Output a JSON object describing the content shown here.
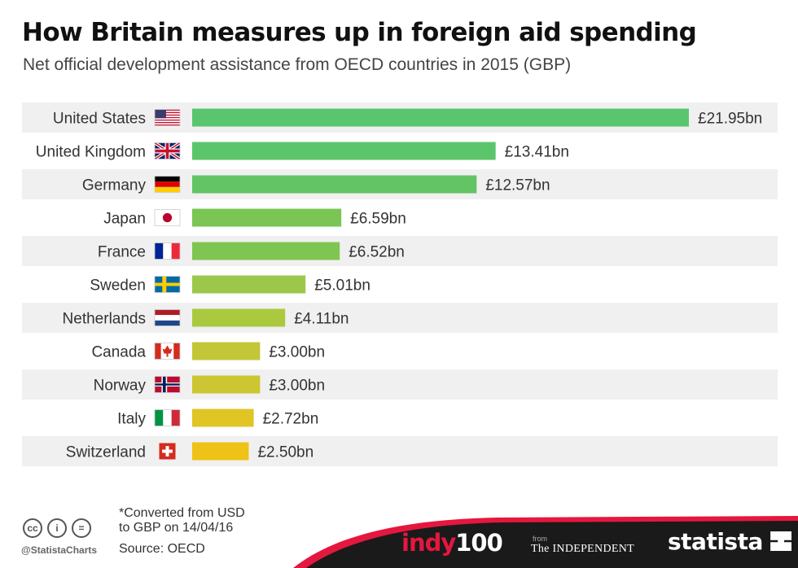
{
  "header": {
    "title": "How Britain measures up in foreign aid spending",
    "subtitle": "Net official development assistance from OECD countries in 2015 (GBP)"
  },
  "chart_data": {
    "type": "bar",
    "orientation": "horizontal",
    "title": "How Britain measures up in foreign aid spending",
    "subtitle": "Net official development assistance from OECD countries in 2015 (GBP)",
    "xlabel": "",
    "ylabel": "",
    "unit": "£ billion",
    "xlim": [
      0,
      22
    ],
    "grid": false,
    "legend": "none",
    "categories": [
      "United States",
      "United Kingdom",
      "Germany",
      "Japan",
      "France",
      "Sweden",
      "Netherlands",
      "Canada",
      "Norway",
      "Italy",
      "Switzerland"
    ],
    "values": [
      21.95,
      13.41,
      12.57,
      6.59,
      6.52,
      5.01,
      4.11,
      3.0,
      3.0,
      2.72,
      2.5
    ],
    "data_labels": [
      "£21.95bn",
      "£13.41bn",
      "£12.57bn",
      "£6.59bn",
      "£6.52bn",
      "£5.01bn",
      "£4.11bn",
      "£3.00bn",
      "£3.00bn",
      "£2.72bn",
      "£2.50bn"
    ],
    "flags": [
      "us-flag-icon",
      "uk-flag-icon",
      "germany-flag-icon",
      "japan-flag-icon",
      "france-flag-icon",
      "sweden-flag-icon",
      "netherlands-flag-icon",
      "canada-flag-icon",
      "norway-flag-icon",
      "italy-flag-icon",
      "switzerland-flag-icon"
    ],
    "bar_colors": [
      "#5ac56f",
      "#5bc56b",
      "#62c464",
      "#7ac553",
      "#7fc552",
      "#9bc84a",
      "#abc93f",
      "#c3c637",
      "#cbc632",
      "#e0c525",
      "#eec216"
    ],
    "row_band_color": "#f0f0f0"
  },
  "footer": {
    "note": "*Converted from USD to GBP on 14/04/16",
    "source": "Source: OECD",
    "handle": "@StatistaCharts",
    "cc_icons": [
      "cc-icon",
      "by-icon",
      "nd-icon"
    ],
    "brand_indy_prefix": "indy",
    "brand_indy_number": "100",
    "brand_from": "from",
    "brand_independent": "The INDEPENDENT",
    "brand_statista": "statista",
    "band_color": "#1a1a1a",
    "accent_color": "#e5173f"
  }
}
